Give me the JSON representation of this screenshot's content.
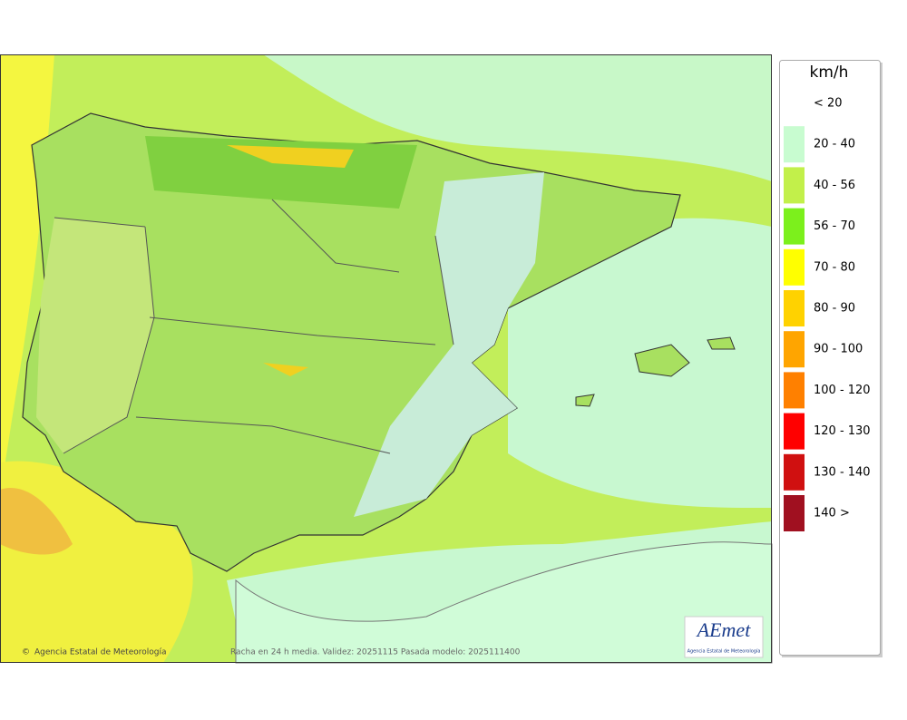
{
  "map": {
    "footer": "Racha en 24 h media. Validez: 20251115 Pasada modelo: 2025111400",
    "copyright": "Agencia Estatal de Meteorología",
    "logo": {
      "title": "AEmet",
      "subtitle": "Agencia Estatal de Meteorología"
    }
  },
  "legend": {
    "title": "km/h",
    "items": [
      {
        "label": "< 20"
      },
      {
        "label": "20 - 40",
        "color": "#c8fcd0"
      },
      {
        "label": "40 - 56",
        "color": "#c2f04a"
      },
      {
        "label": "56 - 70",
        "color": "#7cf01c"
      },
      {
        "label": "70 - 80",
        "color": "#ffff00"
      },
      {
        "label": "80 - 90",
        "color": "#ffd200"
      },
      {
        "label": "90 - 100",
        "color": "#ffa500"
      },
      {
        "label": "100 - 120",
        "color": "#ff8000"
      },
      {
        "label": "120 - 130",
        "color": "#ff0000"
      },
      {
        "label": "130 - 140",
        "color": "#d01010"
      },
      {
        "label": "140 >",
        "color": "#a01020"
      }
    ]
  }
}
